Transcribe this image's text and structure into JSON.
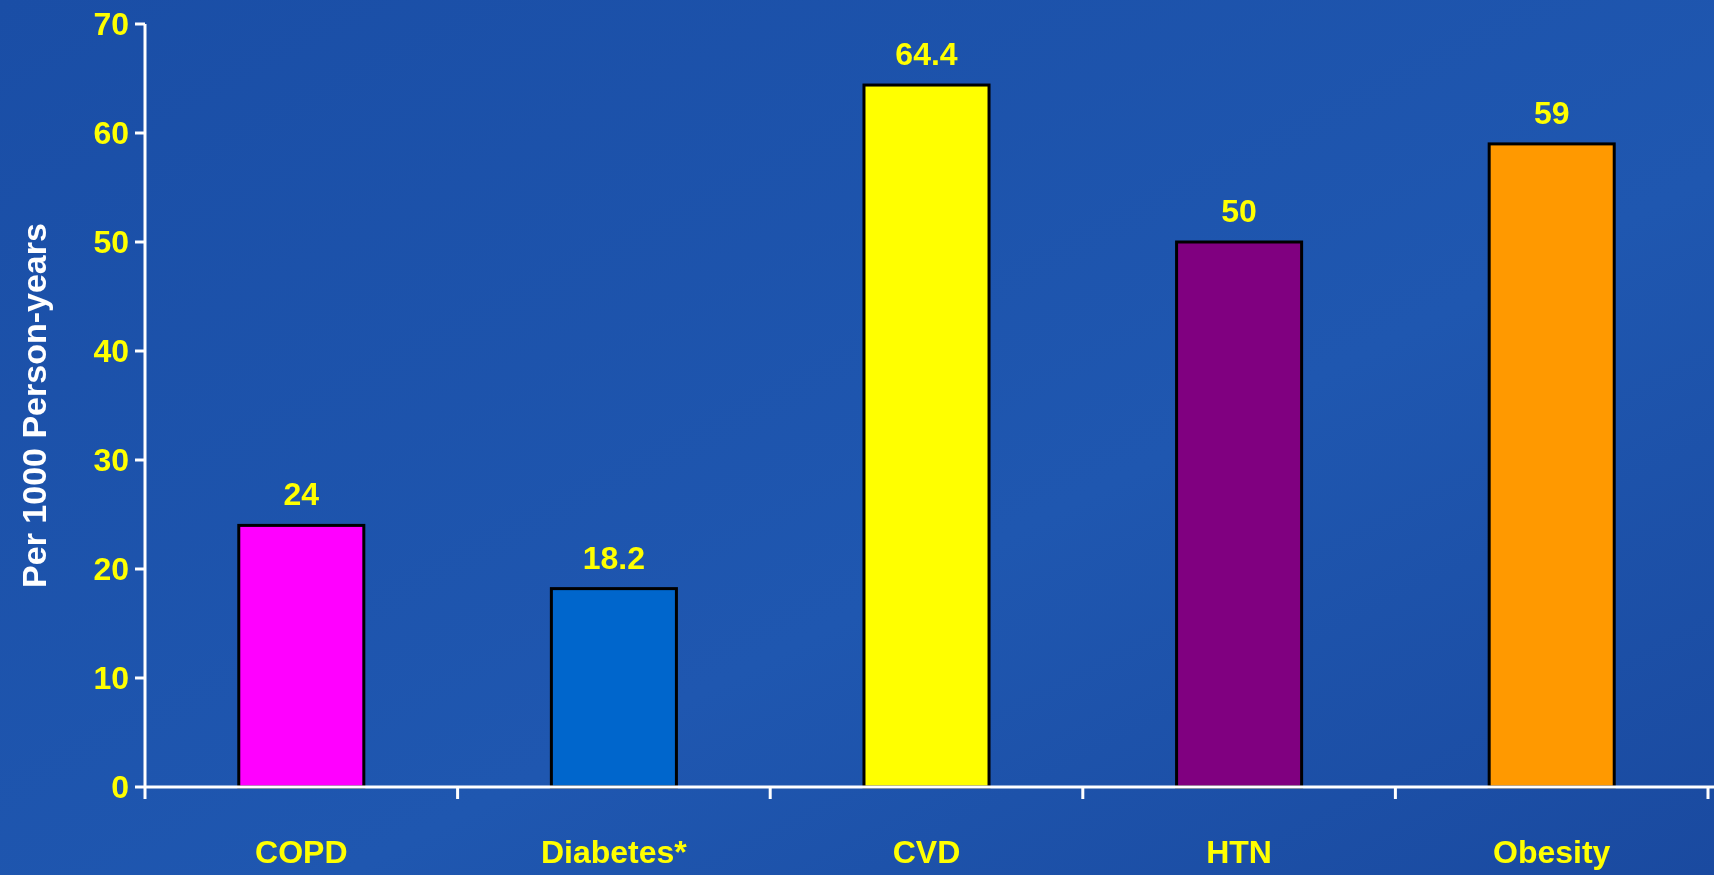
{
  "chart_data": {
    "type": "bar",
    "ylabel": "Per 1000 Person-years",
    "categories": [
      "COPD",
      "Diabetes*",
      "CVD",
      "HTN",
      "Obesity"
    ],
    "values": [
      24,
      18.2,
      64.4,
      50,
      59
    ],
    "colors": [
      "#ff00ff",
      "#0066cc",
      "#ffff00",
      "#800080",
      "#ff9900"
    ],
    "ylim": [
      0,
      70
    ],
    "yticks": [
      0,
      10,
      20,
      30,
      40,
      50,
      60,
      70
    ],
    "data_labels": true
  }
}
